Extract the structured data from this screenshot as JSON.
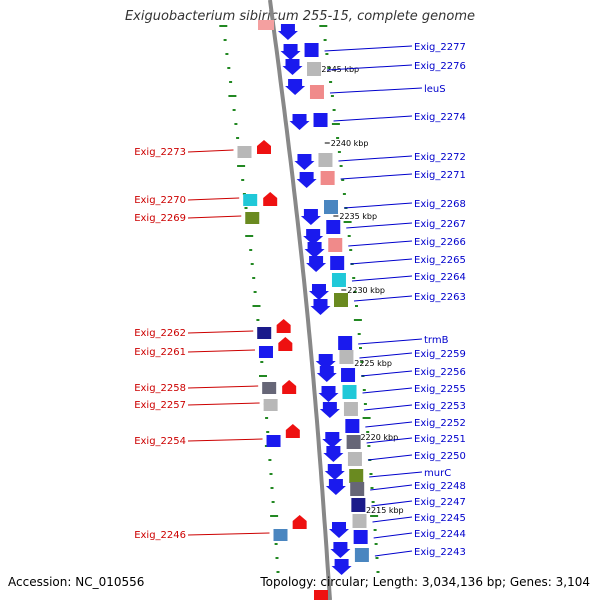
{
  "map": {
    "title": "Exiguobacterium sibiricum 255-15, complete genome",
    "accession_text": "Accession: NC_010556",
    "topology_text": "Topology: circular; Length: 3,034,136 bp; Genes: 3,104"
  },
  "colors": {
    "forward_strand_gene": "#1a1aee",
    "reverse_strand_gene": "#ee1111",
    "right_label": "#0000cc",
    "left_label": "#cc0000",
    "backbone": "#888888",
    "gc_dots": "#228822",
    "swatches": {
      "grey": "#b8b8b8",
      "pink": "#f08a8a",
      "steelblue": "#4a86c0",
      "cyan": "#20c8d8",
      "olive": "#6a8a20",
      "navy": "#1a1a8a",
      "darkgrey": "#666677",
      "orange": "#e89020",
      "blue": "#1a1aee"
    }
  },
  "kbp_markers": [
    "2245 kbp",
    "2240 kbp",
    "2235 kbp",
    "2230 kbp",
    "2225 kbp",
    "2220 kbp",
    "2215 kbp"
  ],
  "right_genes": [
    {
      "label": "Exig_2277",
      "swatch": "blue"
    },
    {
      "label": "Exig_2276",
      "swatch": "grey"
    },
    {
      "label": "leuS",
      "swatch": "pink"
    },
    {
      "label": "Exig_2274",
      "swatch": "blue"
    },
    {
      "label": "Exig_2272",
      "swatch": "grey"
    },
    {
      "label": "Exig_2271",
      "swatch": "pink"
    },
    {
      "label": "Exig_2268",
      "swatch": "steelblue"
    },
    {
      "label": "Exig_2267",
      "swatch": "blue"
    },
    {
      "label": "Exig_2266",
      "swatch": "pink"
    },
    {
      "label": "Exig_2265",
      "swatch": "blue"
    },
    {
      "label": "Exig_2264",
      "swatch": "cyan"
    },
    {
      "label": "Exig_2263",
      "swatch": "olive"
    },
    {
      "label": "trmB",
      "swatch": "blue"
    },
    {
      "label": "Exig_2259",
      "swatch": "grey"
    },
    {
      "label": "Exig_2256",
      "swatch": "blue"
    },
    {
      "label": "Exig_2255",
      "swatch": "cyan"
    },
    {
      "label": "Exig_2253",
      "swatch": "grey"
    },
    {
      "label": "Exig_2252",
      "swatch": "blue"
    },
    {
      "label": "Exig_2251",
      "swatch": "darkgrey"
    },
    {
      "label": "Exig_2250",
      "swatch": "grey"
    },
    {
      "label": "murC",
      "swatch": "olive"
    },
    {
      "label": "Exig_2248",
      "swatch": "darkgrey"
    },
    {
      "label": "Exig_2247",
      "swatch": "navy"
    },
    {
      "label": "Exig_2245",
      "swatch": "grey"
    },
    {
      "label": "Exig_2244",
      "swatch": "blue"
    },
    {
      "label": "Exig_2243",
      "swatch": "steelblue"
    }
  ],
  "left_genes": [
    {
      "label": "Exig_2273",
      "swatch": "grey"
    },
    {
      "label": "Exig_2270",
      "swatch": "cyan"
    },
    {
      "label": "Exig_2269",
      "swatch": "olive"
    },
    {
      "label": "Exig_2262",
      "swatch": "navy"
    },
    {
      "label": "Exig_2261",
      "swatch": "blue"
    },
    {
      "label": "Exig_2258",
      "swatch": "darkgrey"
    },
    {
      "label": "Exig_2257",
      "swatch": "grey"
    },
    {
      "label": "Exig_2254",
      "swatch": "blue"
    },
    {
      "label": "Exig_2246",
      "swatch": "steelblue"
    }
  ]
}
